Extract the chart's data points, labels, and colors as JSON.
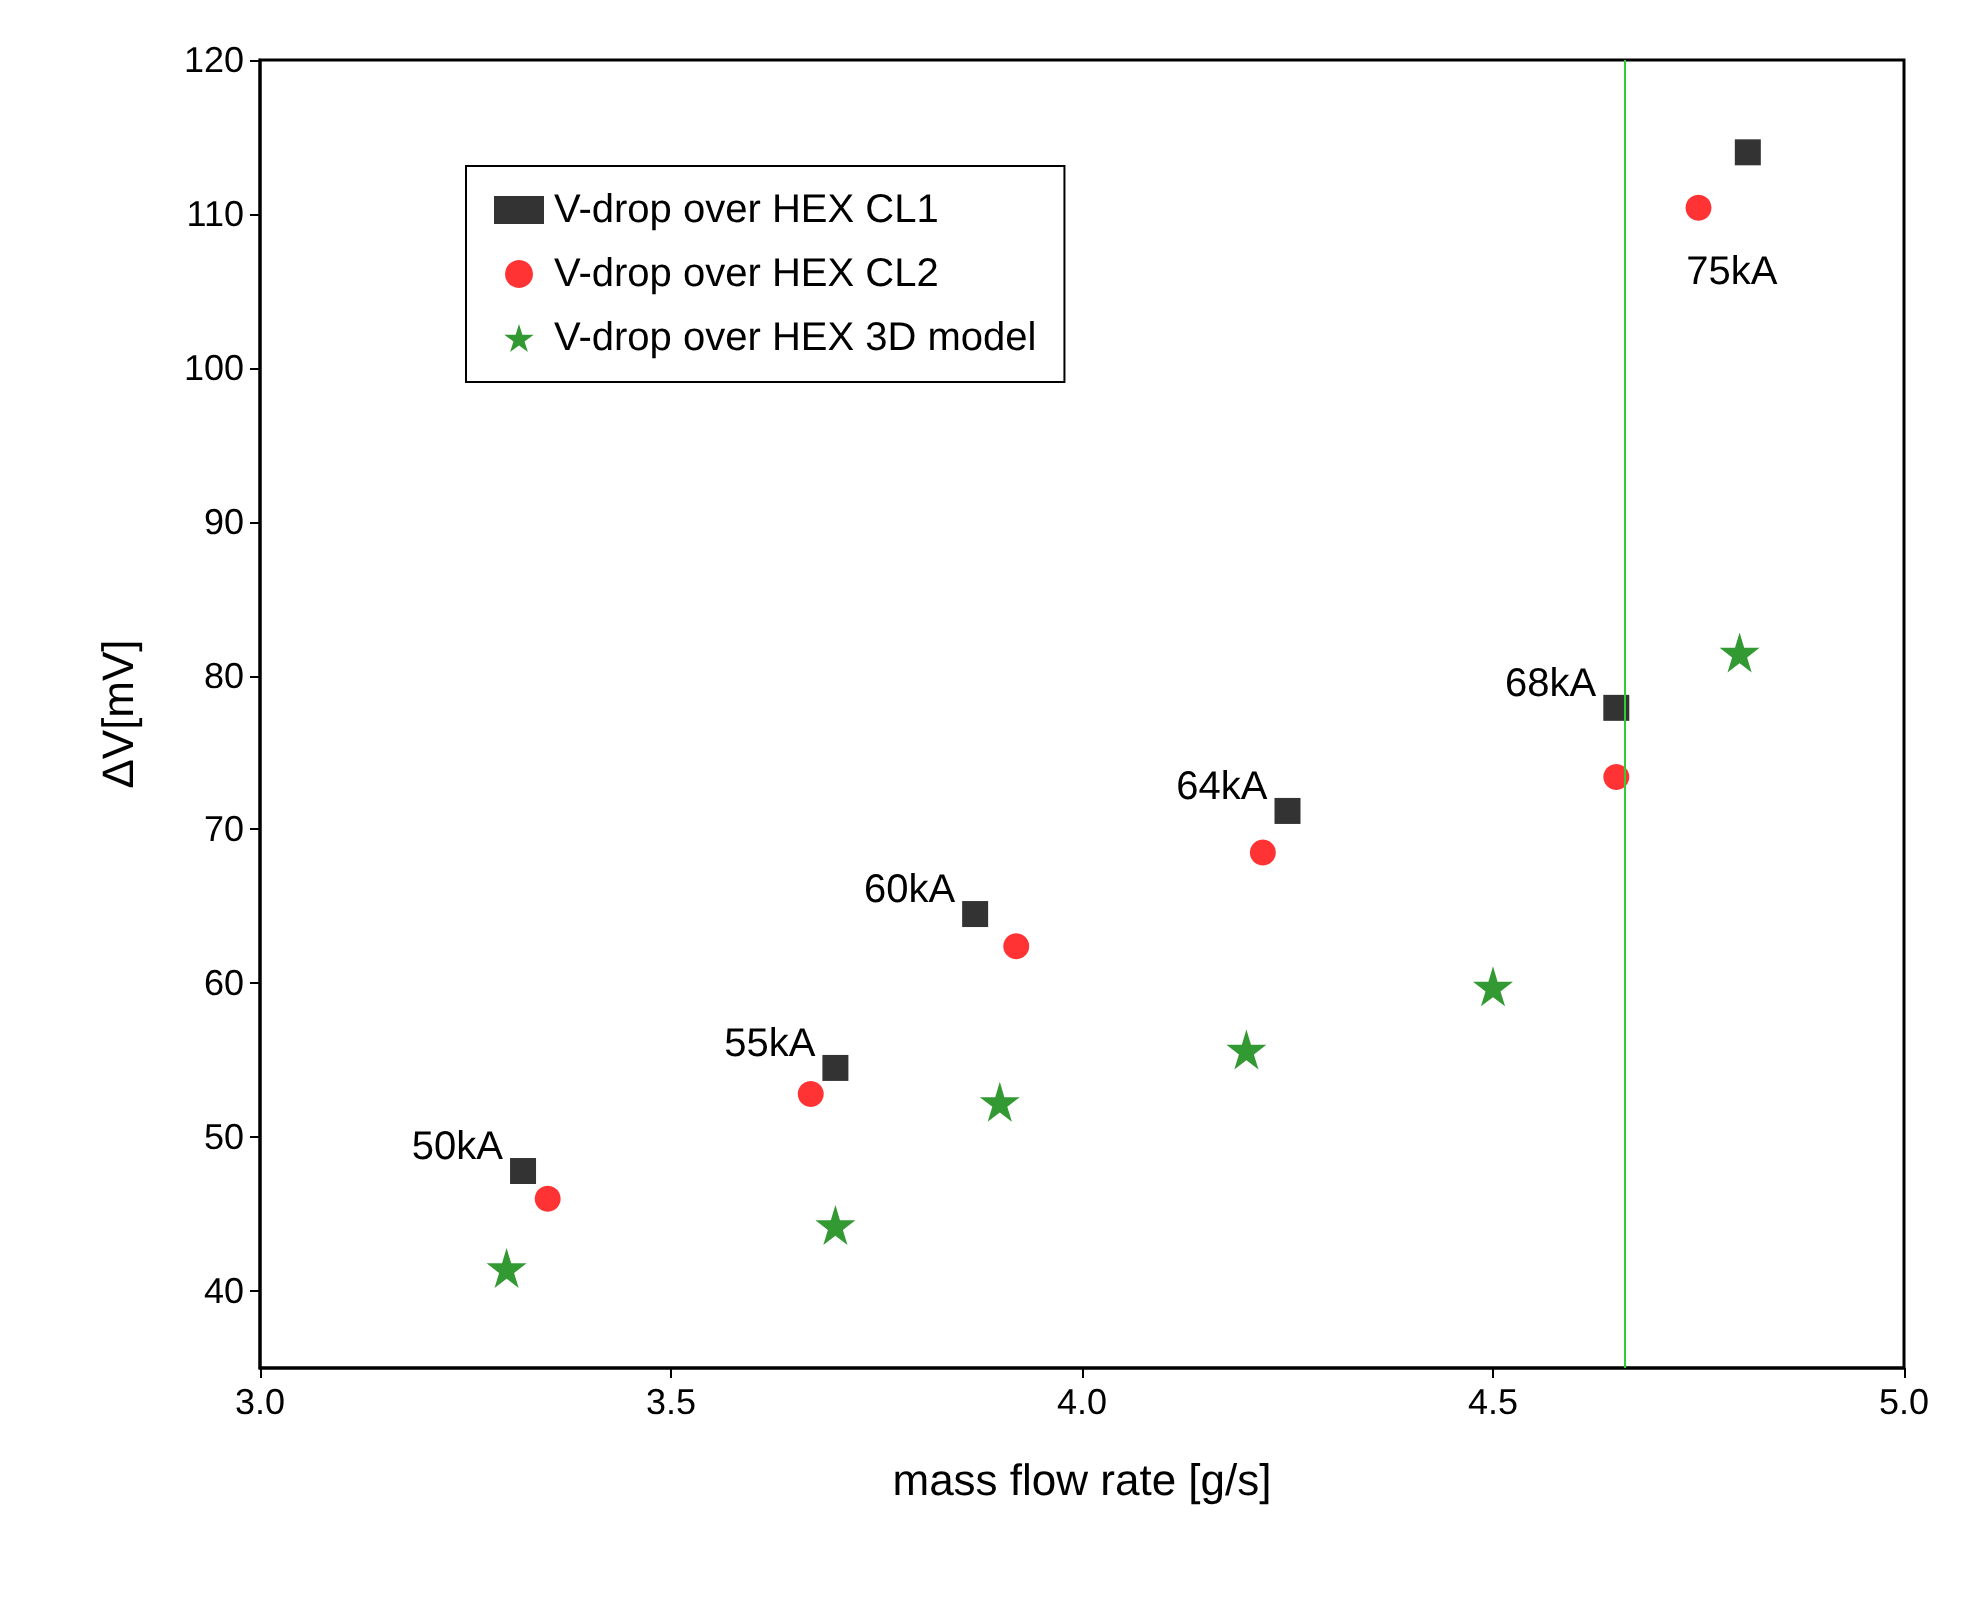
{
  "chart_data": {
    "type": "scatter",
    "xlabel": "mass flow rate [g/s]",
    "ylabel": "ΔV[mV]",
    "xlim": [
      3.0,
      5.0
    ],
    "xticks": [
      {
        "value": 3,
        "label": "3.0"
      },
      3.5,
      {
        "value": 4,
        "label": "4.0"
      },
      4.5,
      {
        "value": 5,
        "label": "5.0"
      }
    ],
    "ylim": [
      35,
      120
    ],
    "yticks": [
      40,
      50,
      60,
      70,
      80,
      90,
      100,
      110,
      120
    ],
    "grid": false,
    "legend": "top left",
    "series": [
      {
        "name": "V-drop over HEX CL1",
        "color": "#000000",
        "marker": "square",
        "x": [
          3.32,
          3.7,
          3.87,
          4.25,
          4.65,
          4.81
        ],
        "values": [
          47.8,
          54.5,
          64.5,
          71.2,
          77.9,
          114
        ]
      },
      {
        "name": "V-drop over HEX CL2",
        "color": "#ff0000",
        "marker": "circle",
        "x": [
          3.35,
          3.67,
          3.92,
          4.22,
          4.65,
          4.75
        ],
        "values": [
          46,
          52.8,
          62.4,
          68.5,
          73.4,
          110.4
        ]
      },
      {
        "name": "V-drop over HEX 3D model",
        "color": "#008000",
        "marker": "star",
        "x": [
          3.3,
          3.7,
          3.9,
          4.2,
          4.5,
          4.8
        ],
        "values": [
          41.5,
          44.3,
          52.3,
          55.7,
          59.8,
          81.5
        ]
      }
    ],
    "ref_lines": [
      {
        "axis": "x",
        "value": 4.66,
        "color": "#33cc33",
        "line_style": "solid"
      }
    ],
    "annotations": [
      {
        "text": "50kA",
        "x": 3.32,
        "y": 47.8
      },
      {
        "text": "55kA",
        "x": 3.7,
        "y": 54.5
      },
      {
        "text": "60kA",
        "x": 3.87,
        "y": 64.5
      },
      {
        "text": "64kA",
        "x": 4.25,
        "y": 71.2
      },
      {
        "text": "68kA",
        "x": 4.65,
        "y": 77.9
      },
      {
        "text": "75kA",
        "x": 4.81,
        "y": 114
      }
    ]
  }
}
